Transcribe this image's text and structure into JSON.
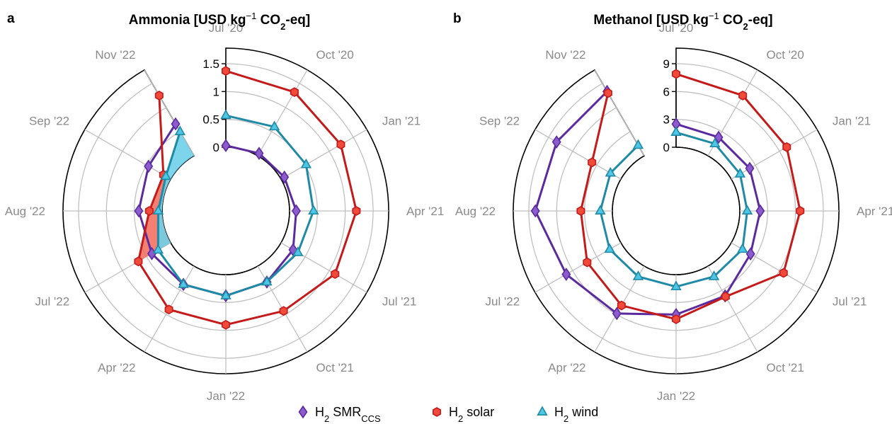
{
  "chart_data": {
    "months": [
      "Jul '20",
      "Oct '20",
      "Jan '21",
      "Apr '21",
      "Jul '21",
      "Oct '21",
      "Jan '22",
      "Apr '22",
      "Jul '22",
      "Aug '22",
      "Sep '22",
      "Nov '22"
    ],
    "legend": [
      {
        "key": "smr",
        "main": "H",
        "sub": "2",
        "rest": " SMR",
        "rest_sub": "CCS"
      },
      {
        "key": "solar",
        "main": "H",
        "sub": "2",
        "rest": " solar",
        "rest_sub": ""
      },
      {
        "key": "wind",
        "main": "H",
        "sub": "2",
        "rest": " wind",
        "rest_sub": ""
      }
    ],
    "colors": {
      "smr_line": "#5b2a9e",
      "smr_fill": "#8c5ccc",
      "solar_line": "#c41a1a",
      "solar_fill": "#f04a3a",
      "wind_line": "#1f8aa6",
      "wind_fill": "#4fc6e3",
      "grid": "#c0c0c0",
      "month_label": "#8a8a8a",
      "shade_solar": "#f26a5a",
      "shade_wind": "#6fd0ea"
    },
    "panels": [
      {
        "label": "a",
        "title_pre": "Ammonia [USD kg",
        "title_sup": "−1",
        "title_mid": " CO",
        "title_sub": "2",
        "title_post": "-eq]",
        "type": "radial-line",
        "rlim": [
          0,
          1.5
        ],
        "rticks": [
          "0",
          "0.5",
          "1",
          "1.5"
        ],
        "rtick_values": [
          0,
          0.5,
          1,
          1.5
        ],
        "series": [
          {
            "key": "smr",
            "values": [
              0.03,
              0.05,
              0.07,
              0.12,
              0.25,
              0.33,
              0.38,
              0.38,
              0.39,
              0.42,
              0.46,
              0.66
            ]
          },
          {
            "key": "solar",
            "values": [
              1.37,
              1.32,
              1.24,
              1.2,
              1.12,
              0.93,
              0.9,
              0.9,
              0.67,
              0.23,
              0.15,
              1.25
            ]
          },
          {
            "key": "wind",
            "values": [
              0.57,
              0.6,
              0.52,
              0.43,
              0.35,
              0.33,
              0.38,
              0.38,
              0.26,
              0.07,
              0.1,
              0.5
            ]
          }
        ]
      },
      {
        "label": "b",
        "title_pre": "Methanol [USD kg",
        "title_sup": "−1",
        "title_mid": " CO",
        "title_sub": "2",
        "title_post": "-eq]",
        "type": "radial-line",
        "rlim": [
          0,
          9
        ],
        "rticks": [
          "0",
          "3",
          "6",
          "9"
        ],
        "rtick_values": [
          0,
          3,
          6,
          9
        ],
        "series": [
          {
            "key": "smr",
            "values": [
              2.5,
              2.3,
              2.3,
              2.2,
              2.4,
              3.7,
              4.3,
              5.9,
              6.8,
              8.3,
              8.0,
              8.0
            ]
          },
          {
            "key": "solar",
            "values": [
              7.9,
              7.5,
              6.9,
              6.5,
              6.5,
              3.8,
              4.8,
              4.9,
              4.2,
              3.4,
              3.6,
              7.8
            ]
          },
          {
            "key": "wind",
            "values": [
              1.6,
              1.5,
              1.1,
              0.8,
              1.4,
              1.3,
              1.3,
              1.3,
              1.4,
              1.3,
              1.3,
              1.3
            ]
          }
        ]
      }
    ]
  }
}
